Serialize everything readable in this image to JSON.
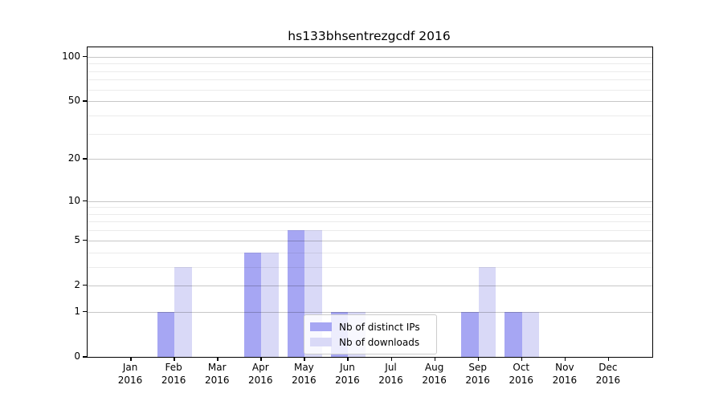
{
  "chart_data": {
    "type": "bar",
    "title": "hs133bhsentrezgcdf 2016",
    "categories": [
      "Jan",
      "Feb",
      "Mar",
      "Apr",
      "May",
      "Jun",
      "Jul",
      "Aug",
      "Sep",
      "Oct",
      "Nov",
      "Dec"
    ],
    "year_label": "2016",
    "series": [
      {
        "name": "Nb of distinct IPs",
        "color": "#a6a6f3",
        "values": [
          0,
          1,
          0,
          4,
          6,
          1,
          0,
          0,
          1,
          1,
          0,
          0
        ]
      },
      {
        "name": "Nb of downloads",
        "color": "#d9d9f7",
        "values": [
          0,
          3,
          0,
          4,
          6,
          1,
          0,
          0,
          3,
          1,
          0,
          0
        ]
      }
    ],
    "yscale": "log1p",
    "ylim": [
      0,
      116
    ],
    "y_major_ticks": [
      0,
      1,
      2,
      5,
      10,
      20,
      50,
      100
    ],
    "y_minor_gridlines": [
      3,
      4,
      6,
      7,
      8,
      9,
      30,
      40,
      60,
      70,
      80,
      90
    ],
    "grid": true,
    "legend_position": "lower center",
    "bar_group_width": 0.8,
    "axis_color": "#000000",
    "major_grid_color": "#c8c8c8",
    "minor_grid_color": "#ebebeb"
  }
}
